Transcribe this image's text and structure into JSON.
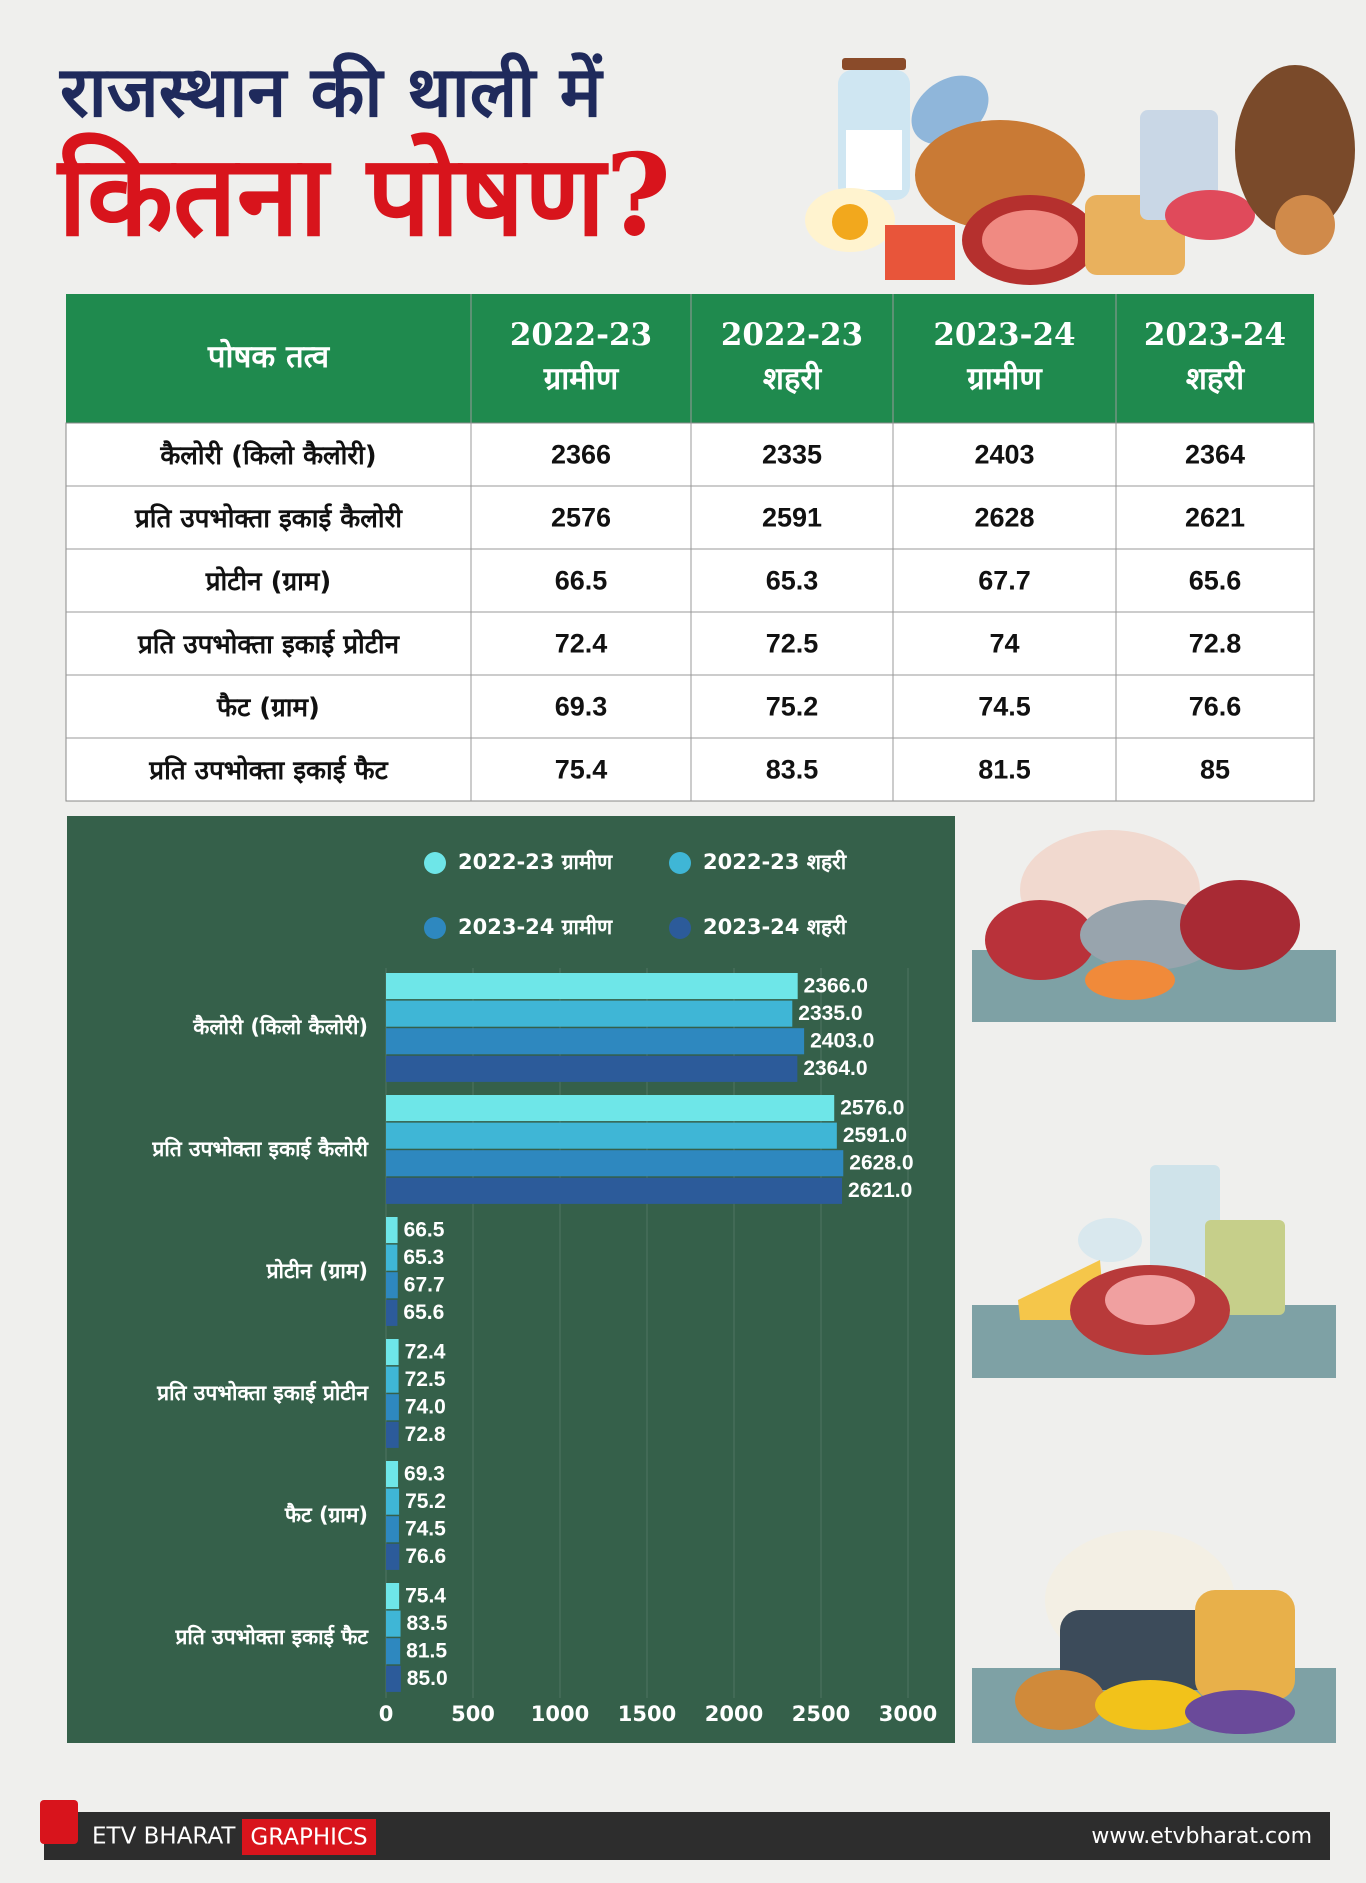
{
  "header": {
    "title_line1": "राजस्थान की थाली में",
    "title_line2": "कितना पोषण?"
  },
  "table": {
    "header": [
      [
        "पोषक तत्व"
      ],
      [
        "2022-23",
        "ग्रामीण"
      ],
      [
        "2022-23",
        "शहरी"
      ],
      [
        "2023-24",
        "ग्रामीण"
      ],
      [
        "2023-24",
        "शहरी"
      ]
    ],
    "rows": [
      [
        "कैलोरी (किलो कैलोरी)",
        2366,
        2335,
        2403,
        2364
      ],
      [
        "प्रति उपभोक्ता इकाई कैलोरी",
        2576,
        2591,
        2628,
        2621
      ],
      [
        "प्रोटीन (ग्राम)",
        66.5,
        65.3,
        67.7,
        65.6
      ],
      [
        "प्रति उपभोक्ता इकाई प्रोटीन",
        72.4,
        72.5,
        74,
        72.8
      ],
      [
        "फैट (ग्राम)",
        69.3,
        75.2,
        74.5,
        76.6
      ],
      [
        "प्रति उपभोक्ता इकाई फैट",
        75.4,
        83.5,
        81.5,
        85
      ]
    ]
  },
  "chart_data": {
    "type": "bar",
    "orientation": "horizontal",
    "categories": [
      "कैलोरी (किलो कैलोरी)",
      "प्रति उपभोक्ता इकाई कैलोरी",
      "प्रोटीन (ग्राम)",
      "प्रति उपभोक्ता इकाई प्रोटीन",
      "फैट (ग्राम)",
      "प्रति उपभोक्ता इकाई फैट"
    ],
    "series": [
      {
        "name": "2022-23 ग्रामीण",
        "color": "#6ee6e8",
        "values": [
          2366,
          2576,
          66.5,
          72.4,
          69.3,
          75.4
        ],
        "value_labels": [
          "2366.0",
          "2576.0",
          "66.5",
          "72.4",
          "69.3",
          "75.4"
        ]
      },
      {
        "name": "2022-23 शहरी",
        "color": "#3fb6d6",
        "values": [
          2335,
          2591,
          65.3,
          72.5,
          75.2,
          83.5
        ],
        "value_labels": [
          "2335.0",
          "2591.0",
          "65.3",
          "72.5",
          "75.2",
          "83.5"
        ]
      },
      {
        "name": "2023-24 ग्रामीण",
        "color": "#2e88bf",
        "values": [
          2403,
          2628,
          67.7,
          74,
          74.5,
          81.5
        ],
        "value_labels": [
          "2403.0",
          "2628.0",
          "67.7",
          "74.0",
          "74.5",
          "81.5"
        ]
      },
      {
        "name": "2023-24 शहरी",
        "color": "#2c5b9a",
        "values": [
          2364,
          2621,
          65.6,
          72.8,
          76.6,
          85
        ],
        "value_labels": [
          "2364.0",
          "2621.0",
          "65.6",
          "72.8",
          "76.6",
          "85.0"
        ]
      }
    ],
    "xlim": [
      0,
      3000
    ],
    "xticks": [
      0,
      500,
      1000,
      1500,
      2000,
      2500,
      3000
    ],
    "grid": true
  },
  "footer": {
    "brand": "ETV BHARAT",
    "section": "GRAPHICS",
    "url": "www.etvbharat.com"
  }
}
